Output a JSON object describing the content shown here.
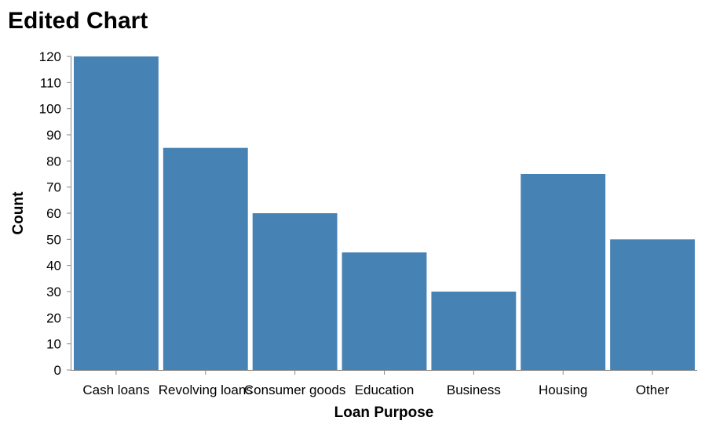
{
  "chart_data": {
    "type": "bar",
    "title": "Edited Chart",
    "xlabel": "Loan Purpose",
    "ylabel": "Count",
    "categories": [
      "Cash loans",
      "Revolving loans",
      "Consumer goods",
      "Education",
      "Business",
      "Housing",
      "Other"
    ],
    "values": [
      120,
      85,
      60,
      45,
      30,
      75,
      50
    ],
    "ylim": [
      0,
      120
    ],
    "yticks": [
      0,
      10,
      20,
      30,
      40,
      50,
      60,
      70,
      80,
      90,
      100,
      110,
      120
    ],
    "grid": false,
    "bar_color": "#4682b4",
    "axis_color": "#888888"
  }
}
